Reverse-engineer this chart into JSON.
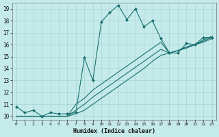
{
  "xlabel": "Humidex (Indice chaleur)",
  "bg_color": "#c5eaea",
  "grid_color": "#aad4d4",
  "line_color": "#1a7070",
  "xlim": [
    -0.5,
    23.5
  ],
  "ylim": [
    9.7,
    19.5
  ],
  "xticks": [
    0,
    1,
    2,
    3,
    4,
    5,
    6,
    7,
    8,
    9,
    10,
    11,
    12,
    13,
    14,
    15,
    16,
    17,
    18,
    19,
    20,
    21,
    22,
    23
  ],
  "yticks": [
    10,
    11,
    12,
    13,
    14,
    15,
    16,
    17,
    18,
    19
  ],
  "main_x": [
    0,
    1,
    2,
    3,
    4,
    5,
    6,
    7,
    8,
    9,
    10,
    11,
    12,
    13,
    14,
    15,
    16,
    17,
    18,
    19,
    20,
    21,
    22,
    23
  ],
  "main_y": [
    10.8,
    10.3,
    10.5,
    10.0,
    10.3,
    10.2,
    10.2,
    10.3,
    14.9,
    13.0,
    17.9,
    18.7,
    19.3,
    18.1,
    19.0,
    17.5,
    18.0,
    16.5,
    15.3,
    15.3,
    16.1,
    16.0,
    16.6,
    16.6
  ],
  "trend1_x": [
    0,
    1,
    2,
    3,
    4,
    5,
    6,
    7,
    8,
    9,
    10,
    11,
    12,
    13,
    14,
    15,
    16,
    17,
    18,
    19,
    20,
    21,
    22,
    23
  ],
  "trend1_y": [
    10.0,
    10.0,
    10.0,
    10.0,
    10.0,
    10.0,
    10.0,
    10.2,
    10.5,
    11.0,
    11.5,
    12.0,
    12.5,
    13.0,
    13.5,
    14.0,
    14.6,
    15.1,
    15.3,
    15.5,
    15.7,
    16.0,
    16.2,
    16.5
  ],
  "trend2_x": [
    0,
    1,
    2,
    3,
    4,
    5,
    6,
    7,
    8,
    9,
    10,
    11,
    12,
    13,
    14,
    15,
    16,
    17,
    18,
    19,
    20,
    21,
    22,
    23
  ],
  "trend2_y": [
    10.0,
    10.0,
    10.0,
    10.0,
    10.0,
    10.0,
    10.0,
    10.5,
    11.0,
    11.6,
    12.1,
    12.6,
    13.1,
    13.6,
    14.1,
    14.6,
    15.1,
    15.6,
    15.3,
    15.5,
    15.8,
    16.0,
    16.3,
    16.6
  ],
  "trend3_x": [
    0,
    1,
    2,
    3,
    4,
    5,
    6,
    7,
    8,
    9,
    10,
    11,
    12,
    13,
    14,
    15,
    16,
    17,
    18,
    19,
    20,
    21,
    22,
    23
  ],
  "trend3_y": [
    10.0,
    10.0,
    10.0,
    10.0,
    10.0,
    10.0,
    10.0,
    11.0,
    11.5,
    12.2,
    12.7,
    13.2,
    13.7,
    14.2,
    14.7,
    15.2,
    15.7,
    16.2,
    15.3,
    15.5,
    15.8,
    16.0,
    16.4,
    16.7
  ]
}
